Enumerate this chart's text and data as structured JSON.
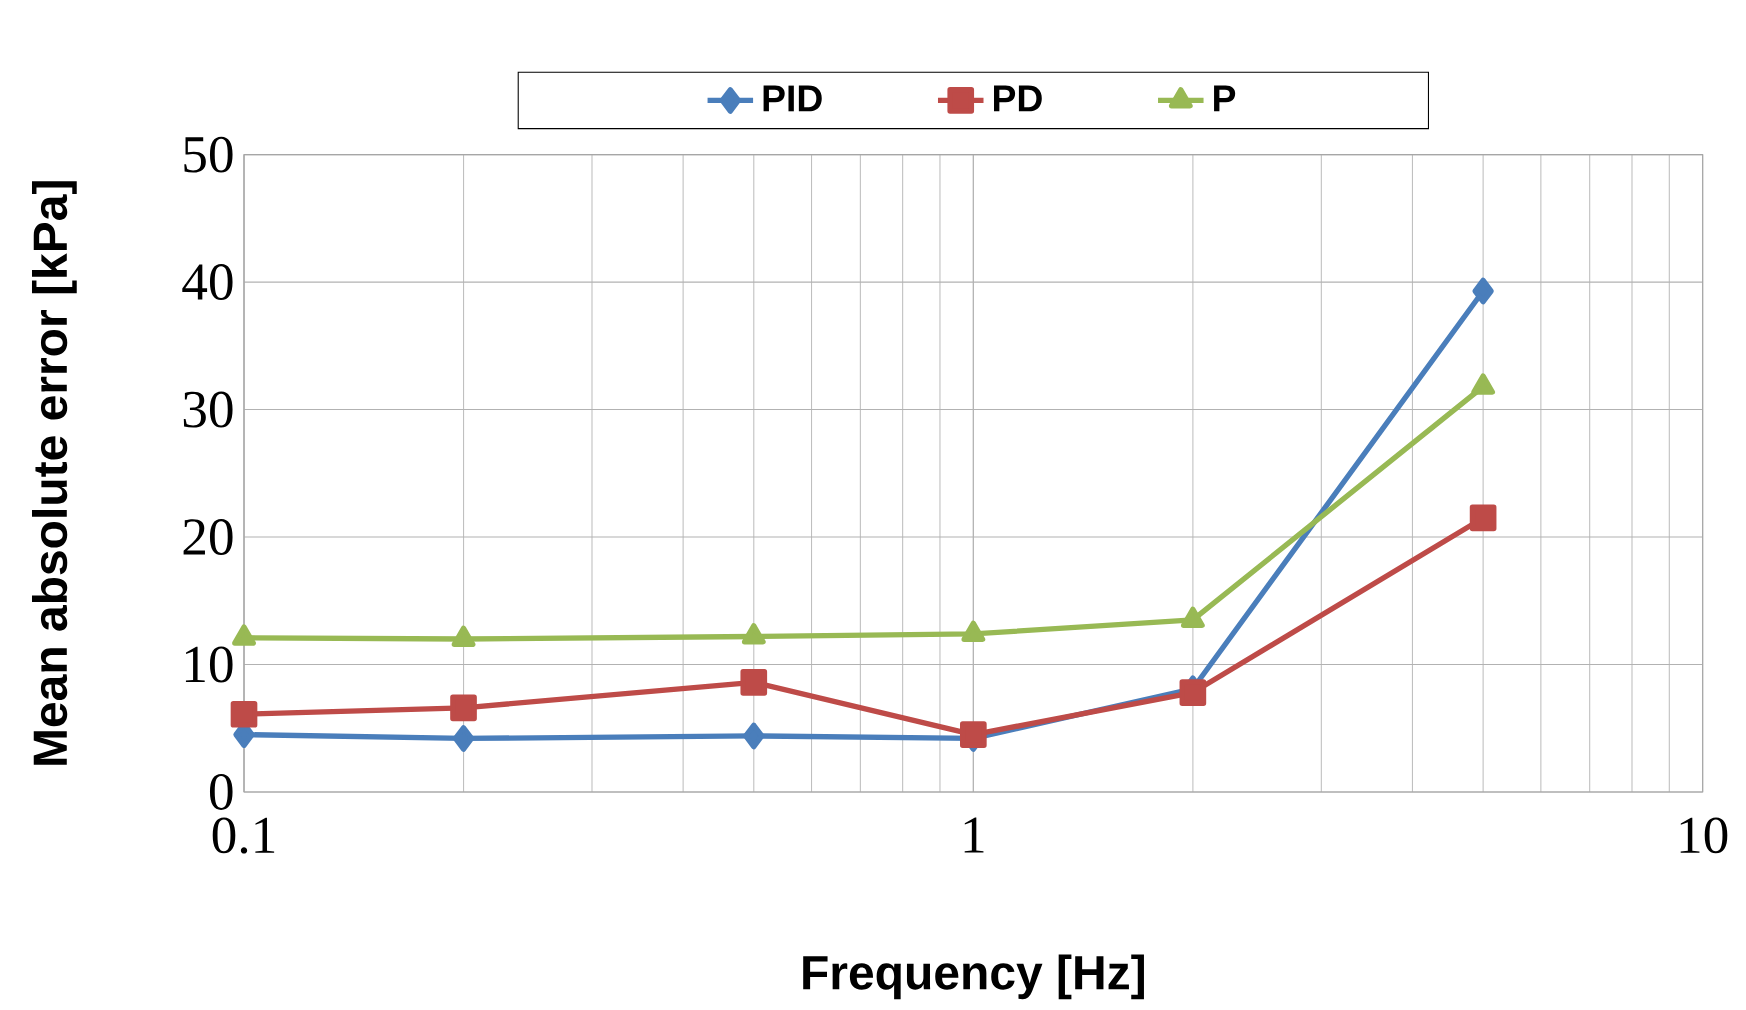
{
  "chart_data": {
    "type": "line",
    "xlabel": "Frequency [Hz]",
    "ylabel": "Mean absolute error [kPa]",
    "log": "x",
    "grid": true,
    "legend": "top",
    "x": [
      0.1,
      0.2,
      0.5,
      1,
      2,
      5
    ],
    "xlim": [
      0.1,
      10
    ],
    "xticks": [
      0.1,
      1,
      10
    ],
    "ylim": [
      0,
      50
    ],
    "yticks": [
      0,
      10,
      20,
      30,
      40,
      50
    ],
    "series": [
      {
        "name": "PID",
        "color": "#4a7ebb",
        "marker": "diamond",
        "values": [
          4.5,
          4.2,
          4.4,
          4.2,
          8.1,
          39.3
        ]
      },
      {
        "name": "PD",
        "color": "#be4b48",
        "marker": "square",
        "values": [
          6.1,
          6.6,
          8.6,
          4.5,
          7.8,
          21.5
        ]
      },
      {
        "name": "P",
        "color": "#98b954",
        "marker": "triangle",
        "values": [
          12.1,
          12.0,
          12.2,
          12.4,
          13.5,
          31.8
        ]
      }
    ]
  }
}
